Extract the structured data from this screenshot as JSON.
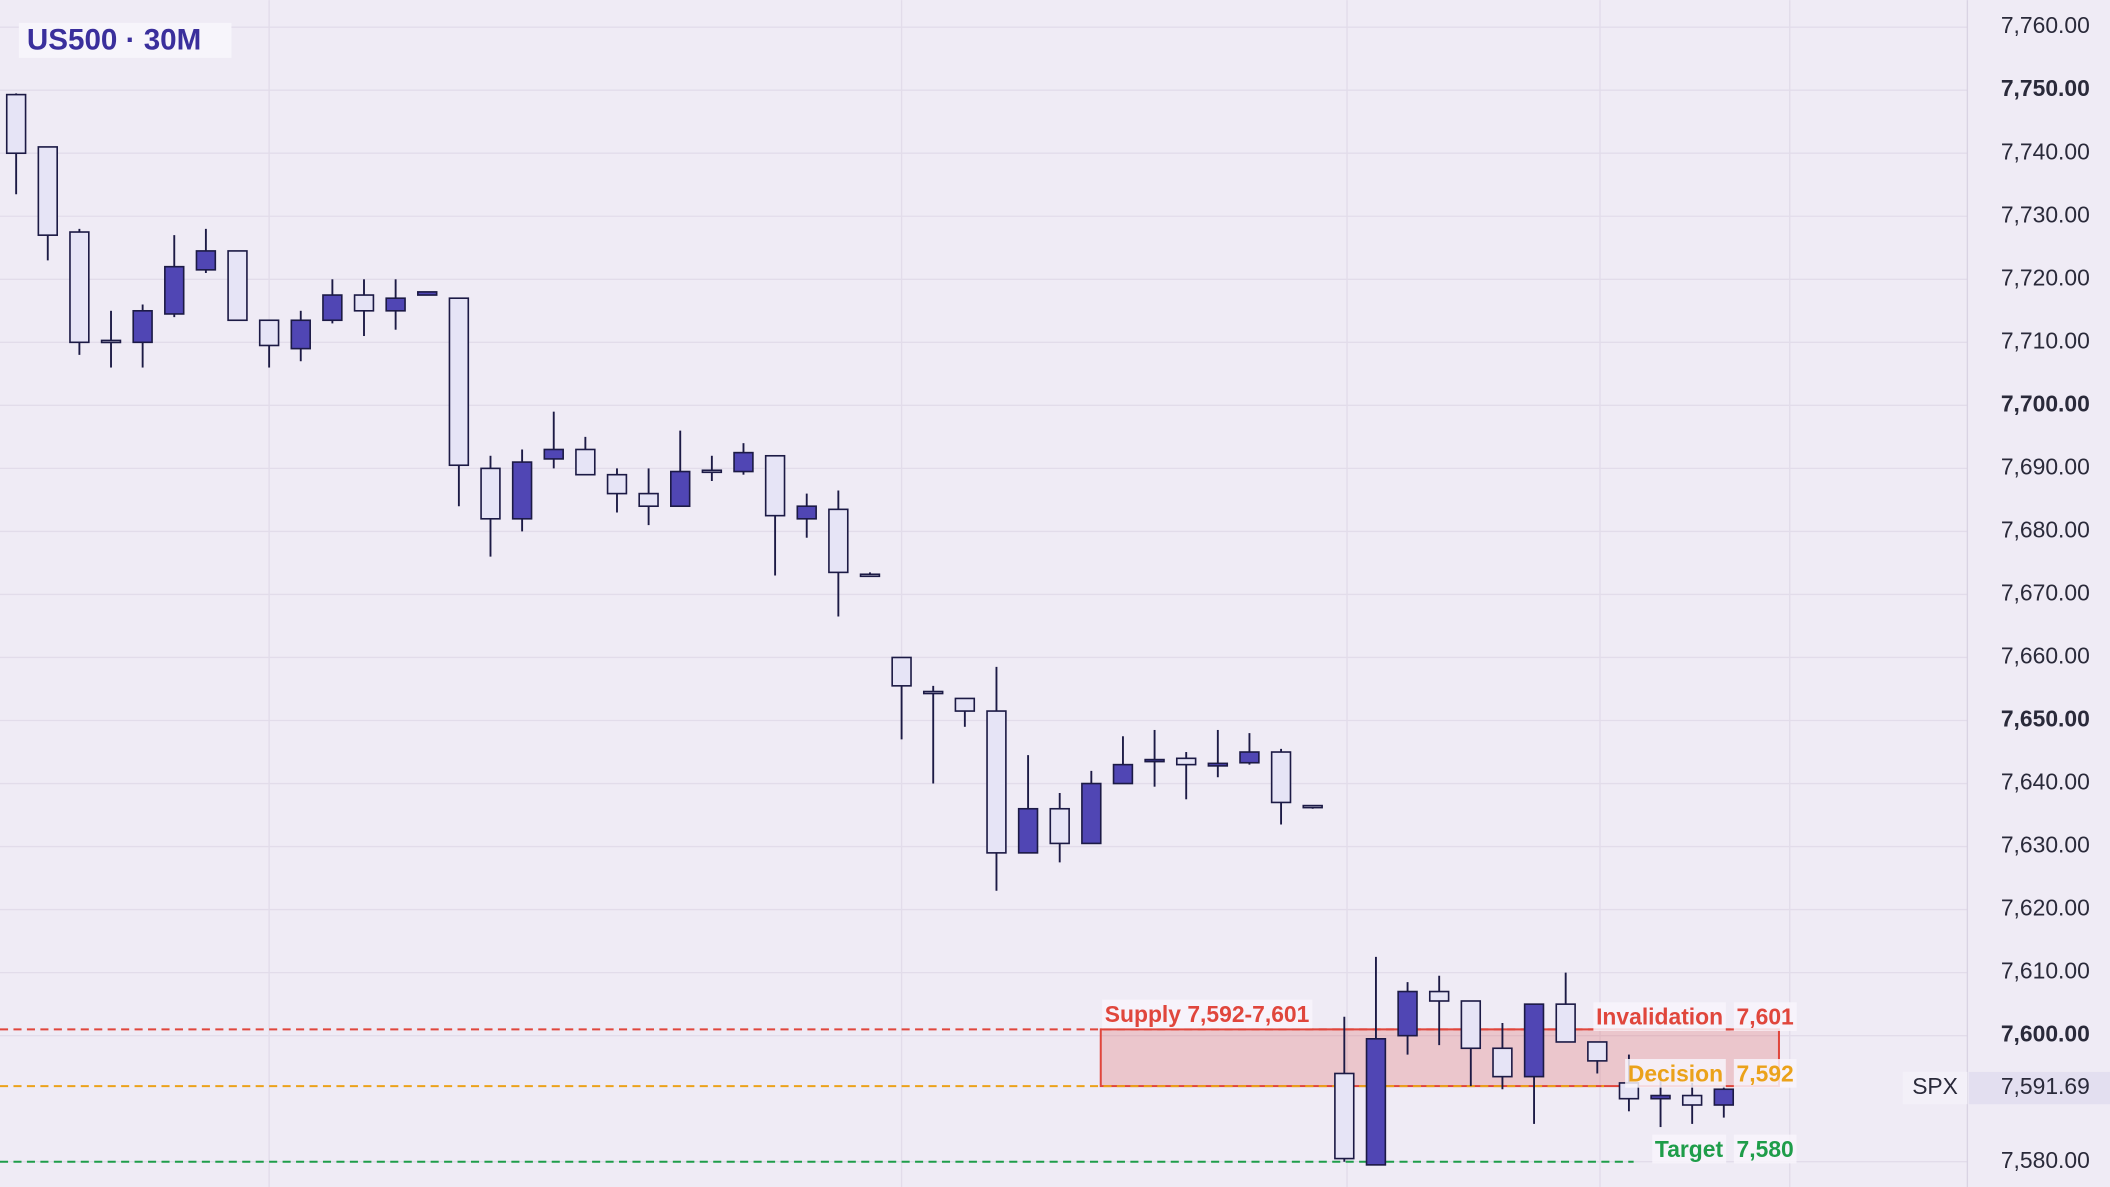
{
  "chart_data": {
    "type": "candlestick",
    "title": "US500 · 30M",
    "open": [
      7749.3,
      7741,
      7727.5,
      7710.3,
      7710,
      7714.5,
      7721.5,
      7724.5,
      7713.5,
      7709,
      7713.5,
      7717.5,
      7715,
      7717.5,
      7717,
      7690,
      7682,
      7691.5,
      7693,
      7689,
      7686,
      7684,
      7689.7,
      7689.5,
      7692,
      7682,
      7683.5,
      7673.2,
      7660,
      7654.6,
      7653.5,
      7651.5,
      7629,
      7636,
      7630.5,
      7640,
      7643.5,
      7644,
      7642.8,
      7643.3,
      7645,
      7636.5,
      7594,
      7579.5,
      7600,
      7607,
      7605.5,
      7598,
      7593.5,
      7605,
      7599,
      7592.5,
      7590,
      7590.5,
      7589
    ],
    "high": [
      7749.5,
      7741,
      7728,
      7715,
      7716,
      7727,
      7728,
      7724.5,
      7713.5,
      7715,
      7720,
      7720,
      7720,
      7718,
      7717,
      7692,
      7693,
      7699,
      7695,
      7690,
      7690,
      7696,
      7692,
      7694,
      7692,
      7686,
      7686.5,
      7673.5,
      7660,
      7655.5,
      7653.5,
      7658.5,
      7644.5,
      7638.5,
      7642,
      7647.5,
      7648.5,
      7645,
      7648.5,
      7648,
      7645.5,
      7636.5,
      7603,
      7612.5,
      7608.5,
      7609.5,
      7605.5,
      7602,
      7605,
      7610,
      7599,
      7597,
      7594,
      7592.5,
      7592
    ],
    "low": [
      7733.5,
      7723,
      7708,
      7706,
      7706,
      7714,
      7721,
      7713.5,
      7706,
      7707,
      7713,
      7711,
      7712,
      7717.5,
      7684,
      7676,
      7680,
      7690,
      7689,
      7683,
      7681,
      7684,
      7688,
      7689,
      7673,
      7679,
      7666.5,
      7673,
      7647,
      7640,
      7649,
      7623,
      7629,
      7627.5,
      7630.5,
      7640,
      7639.5,
      7637.5,
      7641,
      7643,
      7633.5,
      7636,
      7580,
      7579.5,
      7597,
      7598.5,
      7592,
      7591.5,
      7586,
      7599,
      7594,
      7588,
      7585.5,
      7586,
      7587
    ],
    "close": [
      7740,
      7727,
      7710,
      7710,
      7715,
      7722,
      7724.5,
      7713.5,
      7709.5,
      7713.5,
      7717.5,
      7715,
      7717,
      7718,
      7690.5,
      7682,
      7691,
      7693,
      7689,
      7686,
      7684,
      7689.5,
      7689.5,
      7692.5,
      7682.5,
      7684,
      7673.5,
      7673,
      7655.5,
      7654.4,
      7651.5,
      7629,
      7636,
      7630.5,
      7640,
      7643,
      7643.8,
      7643,
      7643.2,
      7645,
      7637,
      7636.3,
      7580.5,
      7599.5,
      7607,
      7605.5,
      7598,
      7593.5,
      7605,
      7599,
      7596,
      7590,
      7590.5,
      7589,
      7591.5
    ],
    "up_color": "#5046b4",
    "down_color": "#e6e4f6",
    "ylim": [
      7576,
      7764.3
    ],
    "yticks": [
      {
        "value": 7580,
        "label": "7,580.00"
      },
      {
        "value": 7600,
        "label": "7,600.00"
      },
      {
        "value": 7610,
        "label": "7,610.00"
      },
      {
        "value": 7620,
        "label": "7,620.00"
      },
      {
        "value": 7630,
        "label": "7,630.00"
      },
      {
        "value": 7640,
        "label": "7,640.00"
      },
      {
        "value": 7650,
        "label": "7,650.00"
      },
      {
        "value": 7660,
        "label": "7,660.00"
      },
      {
        "value": 7670,
        "label": "7,670.00"
      },
      {
        "value": 7680,
        "label": "7,680.00"
      },
      {
        "value": 7690,
        "label": "7,690.00"
      },
      {
        "value": 7700,
        "label": "7,700.00"
      },
      {
        "value": 7710,
        "label": "7,710.00"
      },
      {
        "value": 7720,
        "label": "7,720.00"
      },
      {
        "value": 7730,
        "label": "7,730.00"
      },
      {
        "value": 7740,
        "label": "7,740.00"
      },
      {
        "value": 7750,
        "label": "7,750.00"
      },
      {
        "value": 7760,
        "label": "7,760.00"
      }
    ],
    "bold_tick_step": 50,
    "grid": true,
    "zone": {
      "label": "Supply 7,592-7,601",
      "low": 7592,
      "high": 7601,
      "color": "#e0463c"
    },
    "levels": [
      {
        "label": "Invalidation",
        "value": 7601,
        "value_label": "7,601",
        "color": "#e0463c"
      },
      {
        "label": "Decision",
        "value": 7592,
        "value_label": "7,592",
        "color": "#eba21a"
      },
      {
        "label": "Target",
        "value": 7580,
        "value_label": "7,580",
        "color": "#1f9d4a"
      }
    ],
    "last_price": {
      "symbol": "SPX",
      "value": 7591.69,
      "label": "7,591.69"
    }
  }
}
